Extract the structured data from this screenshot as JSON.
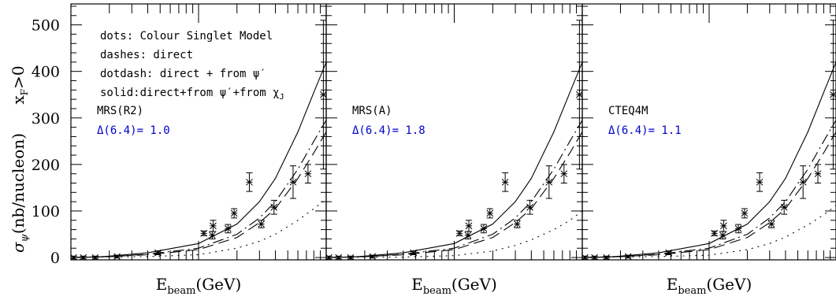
{
  "figure": {
    "ylabel_main": "σ",
    "ylabel_sub": "ψ",
    "ylabel_rest": "(nb/nucleon)",
    "cut_main": "x",
    "cut_sub": "F",
    "cut_rest": ">0",
    "xlabel_main": "E",
    "xlabel_sub": "beam",
    "xlabel_rest": "(GeV)",
    "legend": [
      "dots: Colour Singlet Model",
      "dashes: direct",
      "dotdash: direct + from ψ′",
      "solid:direct+from ψ′+from χ"
    ],
    "legend_last_sub": "J",
    "colors": {
      "axis": "#000000",
      "chi2": "#0000cc"
    }
  },
  "chart_data": [
    {
      "type": "line",
      "panel_label": "MRS(R2)",
      "chi2_label": "Δ(6.4)= 1.0",
      "xlabel": "E_beam(GeV)",
      "ylabel": "σ_ψ(nb/nucleon)",
      "x_scale": "log",
      "ylim": [
        -5,
        545
      ],
      "y_ticks": [
        0,
        100,
        200,
        300,
        400,
        500
      ],
      "grid": false,
      "series": [
        {
          "style": "solid",
          "x": [
            10,
            15,
            20,
            40,
            100,
            200,
            300,
            400,
            600,
            800,
            1000
          ],
          "y": [
            0,
            1,
            3,
            10,
            30,
            72,
            120,
            170,
            270,
            355,
            420
          ]
        },
        {
          "style": "dashdot",
          "x": [
            10,
            20,
            40,
            100,
            200,
            300,
            400,
            600,
            800,
            1000
          ],
          "y": [
            0,
            2,
            7,
            20,
            50,
            85,
            120,
            190,
            250,
            295
          ]
        },
        {
          "style": "dashed",
          "x": [
            10,
            20,
            40,
            100,
            200,
            300,
            400,
            600,
            800,
            1000
          ],
          "y": [
            0,
            2,
            6,
            17,
            43,
            75,
            105,
            170,
            225,
            270
          ]
        },
        {
          "style": "dotted",
          "x": [
            10,
            40,
            100,
            200,
            300,
            400,
            600,
            800,
            1000
          ],
          "y": [
            0,
            2,
            6,
            20,
            35,
            50,
            80,
            105,
            125
          ]
        }
      ],
      "points": {
        "x": [
          10.5,
          12.5,
          15.5,
          23,
          48,
          110,
          128,
          130,
          170,
          190,
          250,
          310,
          390,
          550,
          720,
          950
        ],
        "y": [
          0,
          0,
          0,
          2,
          10,
          52,
          48,
          68,
          62,
          95,
          162,
          72,
          108,
          162,
          180,
          350
        ],
        "err": [
          3,
          3,
          3,
          3,
          4,
          5,
          8,
          12,
          9,
          10,
          20,
          8,
          15,
          35,
          20,
          160
        ]
      }
    },
    {
      "type": "line",
      "panel_label": "MRS(A)",
      "chi2_label": "Δ(6.4)= 1.8",
      "xlabel": "E_beam(GeV)",
      "ylabel": "σ_ψ(nb/nucleon)",
      "x_scale": "log",
      "ylim": [
        -5,
        545
      ],
      "y_ticks": [
        0,
        100,
        200,
        300,
        400,
        500
      ],
      "grid": false,
      "series": [
        {
          "style": "solid",
          "x": [
            10,
            15,
            20,
            40,
            100,
            200,
            300,
            400,
            600,
            800,
            1000
          ],
          "y": [
            0,
            1,
            3,
            10,
            30,
            72,
            120,
            170,
            270,
            355,
            420
          ]
        },
        {
          "style": "dashdot",
          "x": [
            10,
            20,
            40,
            100,
            200,
            300,
            400,
            600,
            800,
            1000
          ],
          "y": [
            0,
            2,
            7,
            20,
            50,
            85,
            120,
            190,
            250,
            295
          ]
        },
        {
          "style": "dashed",
          "x": [
            10,
            20,
            40,
            100,
            200,
            300,
            400,
            600,
            800,
            1000
          ],
          "y": [
            0,
            2,
            6,
            17,
            43,
            75,
            105,
            170,
            225,
            270
          ]
        },
        {
          "style": "dotted",
          "x": [
            10,
            40,
            100,
            200,
            300,
            400,
            600,
            800,
            1000
          ],
          "y": [
            0,
            1,
            4,
            14,
            26,
            38,
            60,
            80,
            100
          ]
        }
      ],
      "points": {
        "x": [
          10.5,
          12.5,
          15.5,
          23,
          48,
          110,
          128,
          130,
          170,
          190,
          250,
          310,
          390,
          550,
          720,
          950
        ],
        "y": [
          0,
          0,
          0,
          2,
          10,
          52,
          48,
          68,
          62,
          95,
          162,
          72,
          108,
          162,
          180,
          350
        ],
        "err": [
          3,
          3,
          3,
          3,
          4,
          5,
          8,
          12,
          9,
          10,
          20,
          8,
          15,
          35,
          20,
          160
        ]
      }
    },
    {
      "type": "line",
      "panel_label": "CTEQ4M",
      "chi2_label": "Δ(6.4)= 1.1",
      "xlabel": "E_beam(GeV)",
      "ylabel": "σ_ψ(nb/nucleon)",
      "x_scale": "log",
      "ylim": [
        -5,
        545
      ],
      "y_ticks": [
        0,
        100,
        200,
        300,
        400,
        500
      ],
      "grid": false,
      "series": [
        {
          "style": "solid",
          "x": [
            10,
            15,
            20,
            40,
            100,
            200,
            300,
            400,
            600,
            800,
            1000
          ],
          "y": [
            0,
            1,
            3,
            10,
            30,
            72,
            120,
            170,
            270,
            355,
            420
          ]
        },
        {
          "style": "dashdot",
          "x": [
            10,
            20,
            40,
            100,
            200,
            300,
            400,
            600,
            800,
            1000
          ],
          "y": [
            0,
            2,
            7,
            20,
            50,
            85,
            120,
            190,
            250,
            295
          ]
        },
        {
          "style": "dashed",
          "x": [
            10,
            20,
            40,
            100,
            200,
            300,
            400,
            600,
            800,
            1000
          ],
          "y": [
            0,
            2,
            6,
            17,
            43,
            75,
            105,
            170,
            225,
            270
          ]
        },
        {
          "style": "dotted",
          "x": [
            10,
            40,
            100,
            200,
            300,
            400,
            600,
            800,
            1000
          ],
          "y": [
            0,
            2,
            5,
            17,
            30,
            44,
            70,
            92,
            112
          ]
        }
      ],
      "points": {
        "x": [
          10.5,
          12.5,
          15.5,
          23,
          48,
          110,
          128,
          130,
          170,
          190,
          250,
          310,
          390,
          550,
          720,
          950
        ],
        "y": [
          0,
          0,
          0,
          2,
          10,
          52,
          48,
          68,
          62,
          95,
          162,
          72,
          108,
          162,
          180,
          350
        ],
        "err": [
          3,
          3,
          3,
          3,
          4,
          5,
          8,
          12,
          9,
          10,
          20,
          8,
          15,
          35,
          20,
          160
        ]
      }
    }
  ]
}
